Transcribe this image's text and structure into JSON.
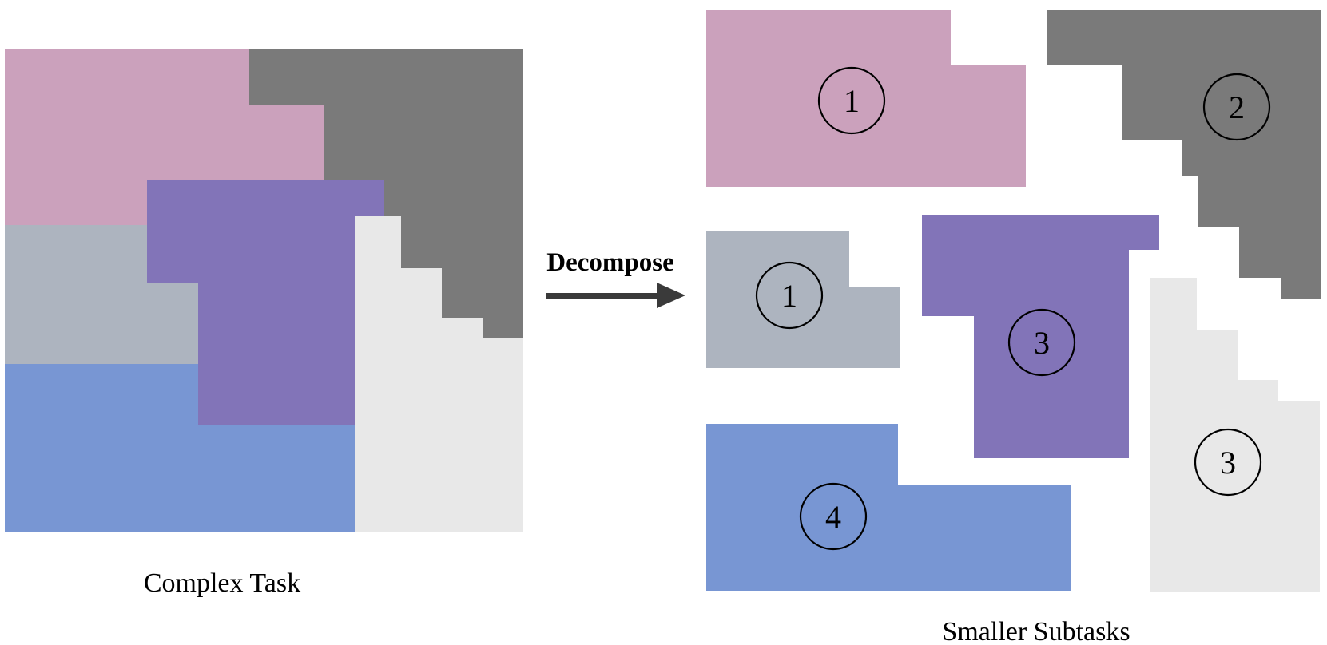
{
  "colors": {
    "pink": "#cba1bc",
    "gray_dark": "#7a7a7a",
    "purple": "#8274b8",
    "gray_blue": "#adb4bf",
    "light_gray": "#e8e8e8",
    "blue": "#7896d3",
    "arrow": "#3a3a3a"
  },
  "labels": {
    "complex_task": "Complex Task",
    "decompose": "Decompose",
    "smaller_subtasks": "Smaller Subtasks"
  },
  "composite": {
    "pieces": [
      {
        "name": "pink",
        "color": "pink"
      },
      {
        "name": "dark-gray",
        "color": "gray_dark"
      },
      {
        "name": "gray-blue",
        "color": "gray_blue"
      },
      {
        "name": "blue",
        "color": "blue"
      },
      {
        "name": "purple",
        "color": "purple"
      },
      {
        "name": "light-gray",
        "color": "light_gray"
      }
    ]
  },
  "subtasks": [
    {
      "name": "pink",
      "color": "pink",
      "badge": "1"
    },
    {
      "name": "dark-gray",
      "color": "gray_dark",
      "badge": "2"
    },
    {
      "name": "gray-blue",
      "color": "gray_blue",
      "badge": "1"
    },
    {
      "name": "purple",
      "color": "purple",
      "badge": "3"
    },
    {
      "name": "light-gray",
      "color": "light_gray",
      "badge": "3"
    },
    {
      "name": "blue",
      "color": "blue",
      "badge": "4"
    }
  ]
}
